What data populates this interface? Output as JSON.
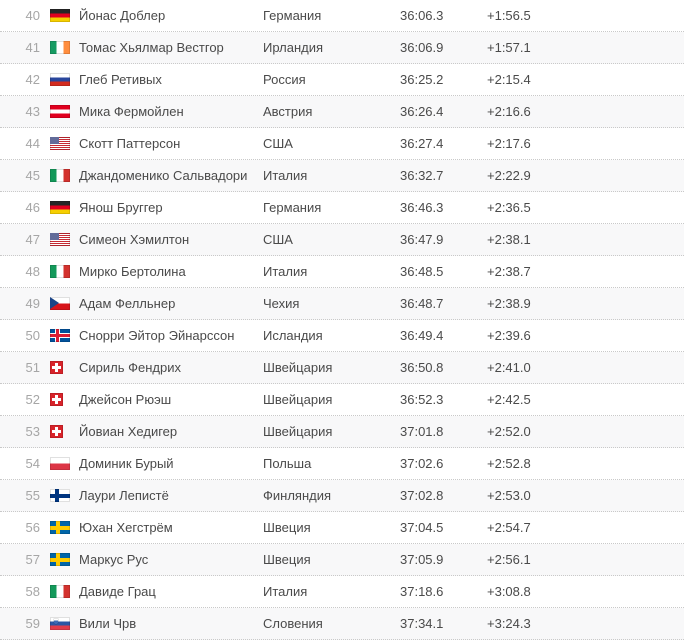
{
  "results_table": {
    "rows": [
      {
        "rank": "40",
        "flag": "germany",
        "name": "Йонас Доблер",
        "country": "Германия",
        "time": "36:06.3",
        "gap": "+1:56.5"
      },
      {
        "rank": "41",
        "flag": "ireland",
        "name": "Томас Хьялмар Вестгор",
        "country": "Ирландия",
        "time": "36:06.9",
        "gap": "+1:57.1"
      },
      {
        "rank": "42",
        "flag": "russia",
        "name": "Глеб Ретивых",
        "country": "Россия",
        "time": "36:25.2",
        "gap": "+2:15.4"
      },
      {
        "rank": "43",
        "flag": "austria",
        "name": "Мика Фермойлен",
        "country": "Австрия",
        "time": "36:26.4",
        "gap": "+2:16.6"
      },
      {
        "rank": "44",
        "flag": "usa",
        "name": "Скотт Паттерсон",
        "country": "США",
        "time": "36:27.4",
        "gap": "+2:17.6"
      },
      {
        "rank": "45",
        "flag": "italy",
        "name": "Джандоменико Сальвадори",
        "country": "Италия",
        "time": "36:32.7",
        "gap": "+2:22.9"
      },
      {
        "rank": "46",
        "flag": "germany",
        "name": "Янош Бруггер",
        "country": "Германия",
        "time": "36:46.3",
        "gap": "+2:36.5"
      },
      {
        "rank": "47",
        "flag": "usa",
        "name": "Симеон Хэмилтон",
        "country": "США",
        "time": "36:47.9",
        "gap": "+2:38.1"
      },
      {
        "rank": "48",
        "flag": "italy",
        "name": "Мирко Бертолина",
        "country": "Италия",
        "time": "36:48.5",
        "gap": "+2:38.7"
      },
      {
        "rank": "49",
        "flag": "czechia",
        "name": "Адам Фелльнер",
        "country": "Чехия",
        "time": "36:48.7",
        "gap": "+2:38.9"
      },
      {
        "rank": "50",
        "flag": "iceland",
        "name": "Снорри Эйтор Эйнарссон",
        "country": "Исландия",
        "time": "36:49.4",
        "gap": "+2:39.6"
      },
      {
        "rank": "51",
        "flag": "switzerland",
        "name": "Сириль Фендрих",
        "country": "Швейцария",
        "time": "36:50.8",
        "gap": "+2:41.0"
      },
      {
        "rank": "52",
        "flag": "switzerland",
        "name": "Джейсон Рюэш",
        "country": "Швейцария",
        "time": "36:52.3",
        "gap": "+2:42.5"
      },
      {
        "rank": "53",
        "flag": "switzerland",
        "name": "Йовиан Хедигер",
        "country": "Швейцария",
        "time": "37:01.8",
        "gap": "+2:52.0"
      },
      {
        "rank": "54",
        "flag": "poland",
        "name": "Доминик Бурый",
        "country": "Польша",
        "time": "37:02.6",
        "gap": "+2:52.8"
      },
      {
        "rank": "55",
        "flag": "finland",
        "name": "Лаури Лепистё",
        "country": "Финляндия",
        "time": "37:02.8",
        "gap": "+2:53.0"
      },
      {
        "rank": "56",
        "flag": "sweden",
        "name": "Юхан Хегстрём",
        "country": "Швеция",
        "time": "37:04.5",
        "gap": "+2:54.7"
      },
      {
        "rank": "57",
        "flag": "sweden",
        "name": "Маркус Рус",
        "country": "Швеция",
        "time": "37:05.9",
        "gap": "+2:56.1"
      },
      {
        "rank": "58",
        "flag": "italy",
        "name": "Давиде Грац",
        "country": "Италия",
        "time": "37:18.6",
        "gap": "+3:08.8"
      },
      {
        "rank": "59",
        "flag": "slovenia",
        "name": "Вили Чрв",
        "country": "Словения",
        "time": "37:34.1",
        "gap": "+3:24.3"
      }
    ]
  },
  "colors": {
    "row_stripe": "#f8f8f9",
    "row_border_dotted": "#c9c9c9",
    "rank_text": "#a6a6a6",
    "main_text": "#4a4a4a"
  }
}
